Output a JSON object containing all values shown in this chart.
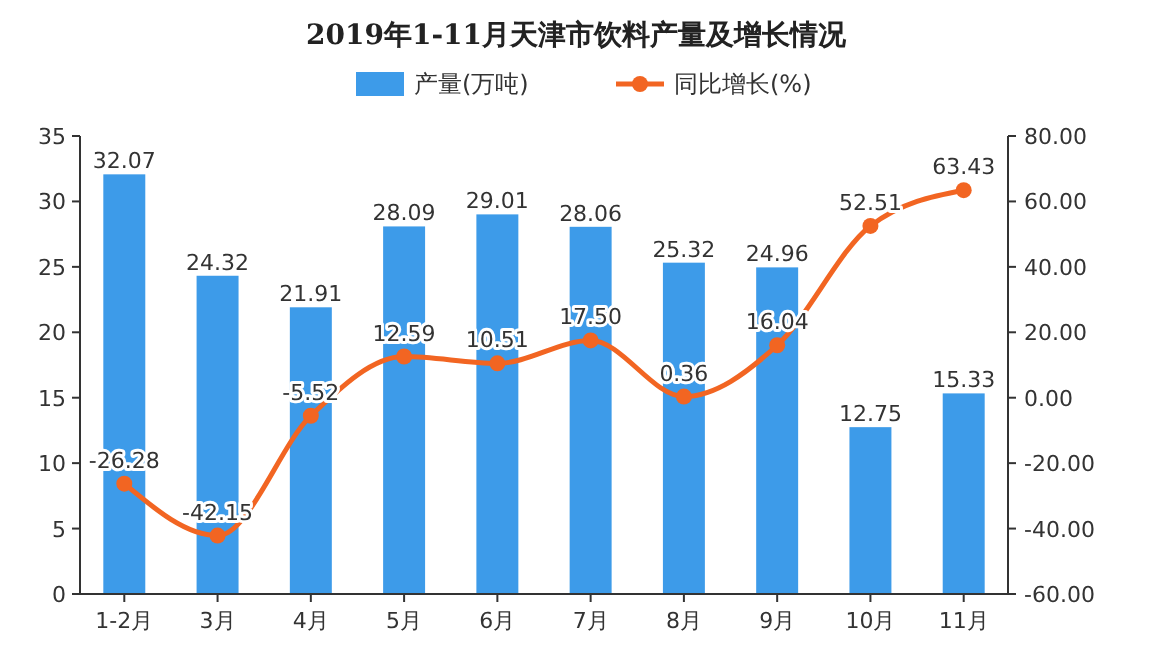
{
  "chart_data": {
    "type": "bar",
    "title": "2019年1-11月天津市饮料产量及增长情况",
    "categories": [
      "1-2月",
      "3月",
      "4月",
      "5月",
      "6月",
      "7月",
      "8月",
      "9月",
      "10月",
      "11月"
    ],
    "series": [
      {
        "name": "产量(万吨)",
        "color": "#3d9be9",
        "values": [
          32.07,
          24.32,
          21.91,
          28.09,
          29.01,
          28.06,
          25.32,
          24.96,
          12.75,
          15.33
        ],
        "value_labels": [
          "32.07",
          "24.32",
          "21.91",
          "28.09",
          "29.01",
          "28.06",
          "25.32",
          "24.96",
          "12.75",
          "15.33"
        ]
      },
      {
        "name": "同比增长(%)",
        "type": "line",
        "axis": "y2",
        "color": "#f26522",
        "marker": "circle",
        "values": [
          -26.28,
          -42.15,
          -5.52,
          12.59,
          10.51,
          17.5,
          0.36,
          16.04,
          52.51,
          63.43
        ],
        "value_labels": [
          "-26.28",
          "-42.15",
          "-5.52",
          "12.59",
          "10.51",
          "17.50",
          "0.36",
          "16.04",
          "52.51",
          "63.43"
        ]
      }
    ],
    "ylim": [
      0,
      35
    ],
    "yticks": [
      0,
      5,
      10,
      15,
      20,
      25,
      30,
      35
    ],
    "y2lim": [
      -60,
      80
    ],
    "y2ticks": [
      {
        "value": -60,
        "label": "-60.00"
      },
      {
        "value": -40,
        "label": "-40.00"
      },
      {
        "value": -20,
        "label": "-20.00"
      },
      {
        "value": 0,
        "label": "0.00"
      },
      {
        "value": 20,
        "label": "20.00"
      },
      {
        "value": 40,
        "label": "40.00"
      },
      {
        "value": 60,
        "label": "60.00"
      },
      {
        "value": 80,
        "label": "80.00"
      }
    ],
    "legend": "top",
    "grid": false
  }
}
